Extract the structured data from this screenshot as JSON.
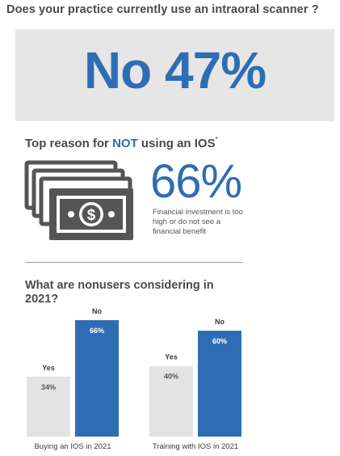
{
  "question": "Does your practice currently use an intraoral scanner ?",
  "headline": "No 47%",
  "reason": {
    "title_pre": "Top reason for ",
    "title_highlight": "NOT",
    "title_post": " using an IOS",
    "title_sup": "*",
    "percent": "66%",
    "description": "Financial investment is too high or do not see a financial benefit"
  },
  "colors": {
    "blue": "#2e6db4",
    "gray_bar": "#e3e3e3",
    "dark_gray": "#555555"
  },
  "chart_data": {
    "type": "bar",
    "title": "What are nonusers considering in 2021?",
    "categories": [
      "Buying an IOS in 2021",
      "Training with IOS in 2021"
    ],
    "series": [
      {
        "name": "Yes",
        "values": [
          34,
          40
        ],
        "labels": [
          "34%",
          "40%"
        ],
        "color": "#e3e3e3"
      },
      {
        "name": "No",
        "values": [
          66,
          60
        ],
        "labels": [
          "66%",
          "60%"
        ],
        "color": "#2e6db4"
      }
    ],
    "ylim": [
      0,
      66
    ]
  }
}
